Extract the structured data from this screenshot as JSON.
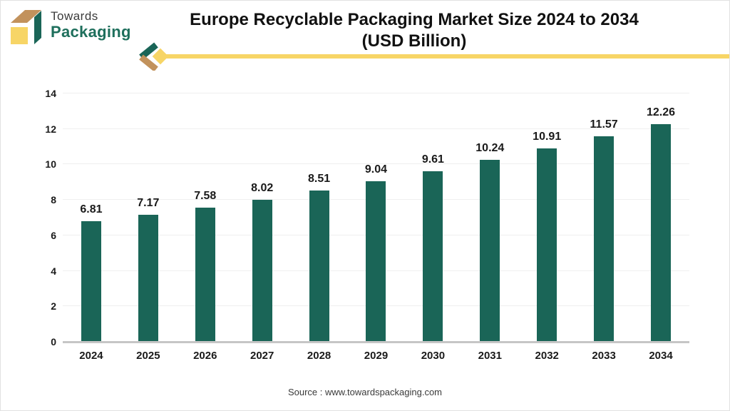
{
  "logo": {
    "line1": "Towards",
    "line2": "Packaging"
  },
  "header": {
    "title_line1": "Europe Recyclable Packaging Market Size 2024 to 2034",
    "title_line2": "(USD Billion)"
  },
  "chart_data": {
    "type": "bar",
    "title": "Europe Recyclable Packaging Market Size 2024 to 2034 (USD Billion)",
    "categories": [
      "2024",
      "2025",
      "2026",
      "2027",
      "2028",
      "2029",
      "2030",
      "2031",
      "2032",
      "2033",
      "2034"
    ],
    "values": [
      6.81,
      7.17,
      7.58,
      8.02,
      8.51,
      9.04,
      9.61,
      10.24,
      10.91,
      11.57,
      12.26
    ],
    "xlabel": "",
    "ylabel": "",
    "ylim": [
      0,
      14
    ],
    "yticks": [
      0,
      2,
      4,
      6,
      8,
      10,
      12,
      14
    ],
    "grid": true,
    "legend": "none",
    "bar_color": "#1A6557",
    "value_label_decimals": 2
  },
  "colors": {
    "bar": "#1A6557",
    "accent_yellow": "#F7D566",
    "accent_tan": "#C2925C",
    "accent_green": "#1A6557",
    "grid": "#EFEFEF",
    "axis": "#C6C6C6"
  },
  "footer": {
    "source": "Source : www.towardspackaging.com"
  }
}
